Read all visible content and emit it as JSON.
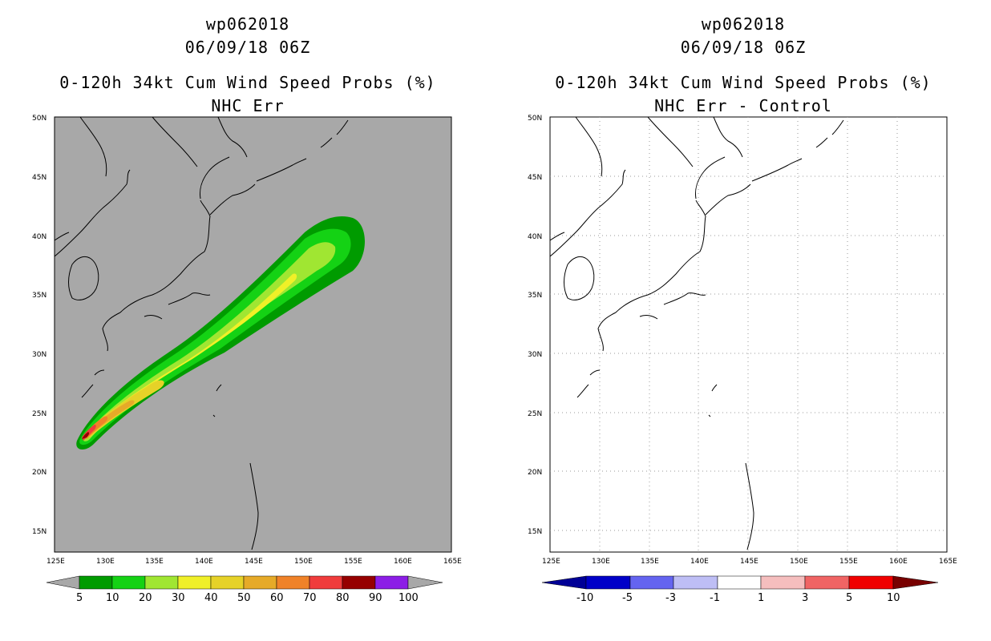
{
  "panels": [
    {
      "title_line1": "wp062018",
      "title_line2": "06/09/18 06Z",
      "title_line3": "0-120h 34kt Cum Wind Speed Probs (%)",
      "title_line4": "NHC Err",
      "background": "#a8a8a8",
      "colorbar": {
        "labels": [
          "5",
          "10",
          "20",
          "30",
          "40",
          "50",
          "60",
          "70",
          "80",
          "90",
          "100"
        ],
        "colors": [
          "#009b00",
          "#14d214",
          "#a0e632",
          "#f0f028",
          "#e6d228",
          "#e6aa28",
          "#f08228",
          "#f03c3c",
          "#960000",
          "#8c1ee6"
        ],
        "under_color": "#a8a8a8",
        "over_color": "#a8a8a8"
      }
    },
    {
      "title_line1": "wp062018",
      "title_line2": "06/09/18 06Z",
      "title_line3": "0-120h 34kt Cum Wind Speed Probs (%)",
      "title_line4": "NHC Err - Control",
      "background": "#ffffff",
      "colorbar": {
        "labels": [
          "-10",
          "-5",
          "-3",
          "-1",
          "1",
          "3",
          "5",
          "10"
        ],
        "colors": [
          "#0000c8",
          "#6464f0",
          "#bebef5",
          "#ffffff",
          "#f5bebe",
          "#f06464",
          "#f00000"
        ],
        "under_color": "#000096",
        "over_color": "#780000"
      }
    }
  ],
  "axes": {
    "lon_ticks": [
      "125E",
      "130E",
      "135E",
      "140E",
      "145E",
      "150E",
      "155E",
      "160E",
      "165E"
    ],
    "lat_ticks": [
      "50N",
      "45N",
      "40N",
      "35N",
      "30N",
      "25N",
      "20N",
      "15N"
    ]
  }
}
